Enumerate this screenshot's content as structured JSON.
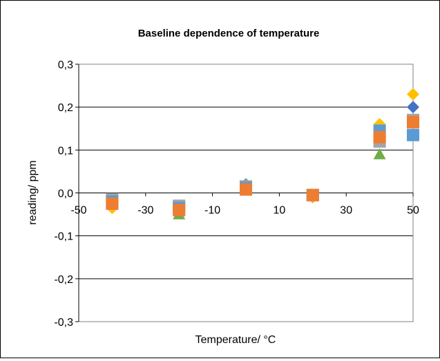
{
  "chart_data": {
    "type": "scatter",
    "title": "Baseline dependence of temperature",
    "xlabel": "Temperature/ °C",
    "ylabel": "reading/ ppm",
    "xlim": [
      -50,
      50
    ],
    "ylim": [
      -0.3,
      0.3
    ],
    "x_ticks": [
      "-50",
      "-30",
      "-10",
      "10",
      "30",
      "50"
    ],
    "y_ticks": [
      "0,3",
      "0,2",
      "0,1",
      "0,0",
      "-0,1",
      "-0,2",
      "-0,3"
    ],
    "grid": "horizontal",
    "legend": "none",
    "series": [
      {
        "marker": "diamond",
        "color": "#FFC000",
        "points": [
          [
            -40,
            -0.035
          ],
          [
            -20,
            -0.045
          ],
          [
            0,
            0.01
          ],
          [
            20,
            -0.01
          ],
          [
            40,
            0.16
          ],
          [
            50,
            0.23
          ]
        ]
      },
      {
        "marker": "diamond",
        "color": "#4472C4",
        "points": [
          [
            -40,
            -0.015
          ],
          [
            -20,
            -0.035
          ],
          [
            0,
            0.02
          ],
          [
            20,
            -0.005
          ],
          [
            40,
            0.145
          ],
          [
            50,
            0.2
          ]
        ]
      },
      {
        "marker": "triangle",
        "color": "#70AD47",
        "points": [
          [
            -40,
            -0.02
          ],
          [
            -20,
            -0.05
          ],
          [
            0,
            0.02
          ],
          [
            20,
            -0.005
          ],
          [
            40,
            0.09
          ],
          [
            50,
            0.165
          ]
        ]
      },
      {
        "marker": "square",
        "color": "#A5A5A5",
        "points": [
          [
            -40,
            -0.015
          ],
          [
            -20,
            -0.03
          ],
          [
            0,
            0.015
          ],
          [
            20,
            -0.005
          ],
          [
            40,
            0.12
          ],
          [
            50,
            0.17
          ]
        ]
      },
      {
        "marker": "square",
        "color": "#5B9BD5",
        "points": [
          [
            -40,
            -0.02
          ],
          [
            -20,
            -0.035
          ],
          [
            0,
            0.012
          ],
          [
            20,
            -0.005
          ],
          [
            40,
            0.145
          ],
          [
            50,
            0.135
          ]
        ]
      },
      {
        "marker": "square",
        "color": "#ED7D31",
        "points": [
          [
            -40,
            -0.025
          ],
          [
            -20,
            -0.04
          ],
          [
            0,
            0.008
          ],
          [
            20,
            -0.005
          ],
          [
            40,
            0.13
          ],
          [
            50,
            0.165
          ]
        ]
      }
    ]
  }
}
